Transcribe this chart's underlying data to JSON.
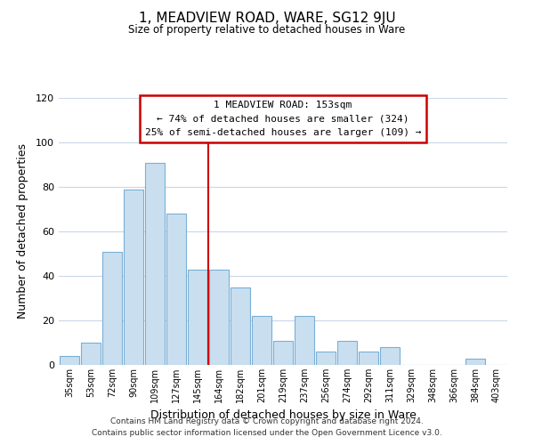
{
  "title": "1, MEADVIEW ROAD, WARE, SG12 9JU",
  "subtitle": "Size of property relative to detached houses in Ware",
  "xlabel": "Distribution of detached houses by size in Ware",
  "ylabel": "Number of detached properties",
  "bar_color": "#c9dff0",
  "bar_edge_color": "#7aafd4",
  "categories": [
    "35sqm",
    "53sqm",
    "72sqm",
    "90sqm",
    "109sqm",
    "127sqm",
    "145sqm",
    "164sqm",
    "182sqm",
    "201sqm",
    "219sqm",
    "237sqm",
    "256sqm",
    "274sqm",
    "292sqm",
    "311sqm",
    "329sqm",
    "348sqm",
    "366sqm",
    "384sqm",
    "403sqm"
  ],
  "values": [
    4,
    10,
    51,
    79,
    91,
    68,
    43,
    43,
    35,
    22,
    11,
    22,
    6,
    11,
    6,
    8,
    0,
    0,
    0,
    3,
    0
  ],
  "ylim": [
    0,
    120
  ],
  "yticks": [
    0,
    20,
    40,
    60,
    80,
    100,
    120
  ],
  "vline_x_index": 7.0,
  "property_line_label": "1 MEADVIEW ROAD: 153sqm",
  "annotation_line1": "← 74% of detached houses are smaller (324)",
  "annotation_line2": "25% of semi-detached houses are larger (109) →",
  "annotation_box_color": "#ffffff",
  "annotation_box_edge": "#cc0000",
  "vline_color": "#cc0000",
  "footer1": "Contains HM Land Registry data © Crown copyright and database right 2024.",
  "footer2": "Contains public sector information licensed under the Open Government Licence v3.0.",
  "background_color": "#ffffff",
  "grid_color": "#c8d8e8"
}
